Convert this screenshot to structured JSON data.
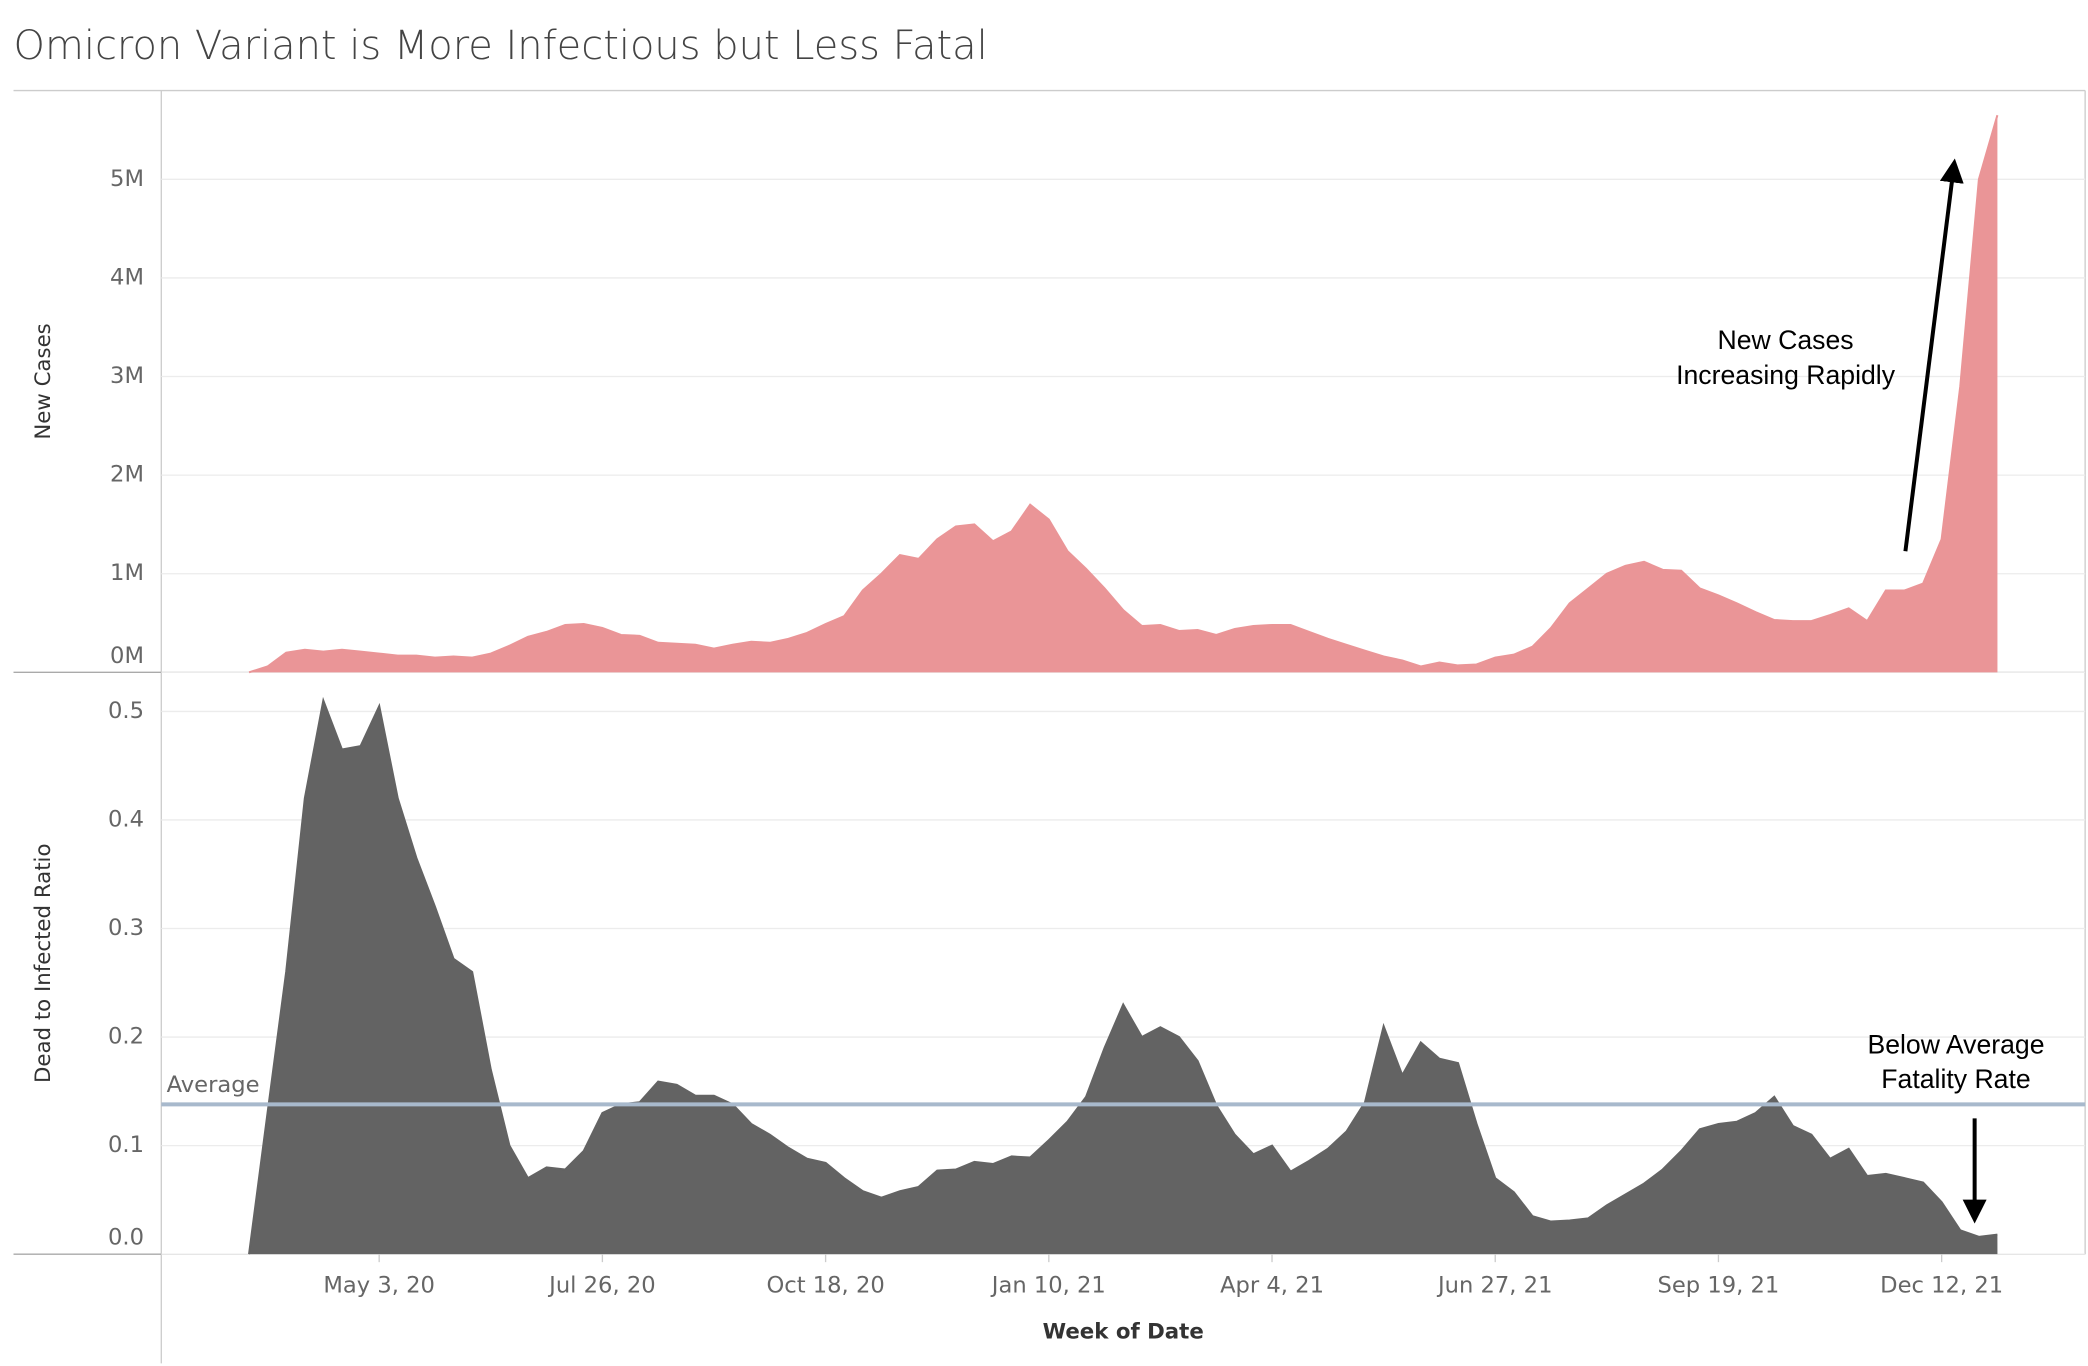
{
  "title": "Omicron Variant is More Infectious but Less Fatal",
  "chart_data": [
    {
      "type": "area",
      "y_label": "New Cases",
      "grid": true,
      "xlim": [
        "2020-02-11",
        "2022-02-04"
      ],
      "ylim": [
        0,
        5900000
      ],
      "yticks": [
        {
          "value": 0,
          "label": "0M"
        },
        {
          "value": 1000000,
          "label": "1M"
        },
        {
          "value": 2000000,
          "label": "2M"
        },
        {
          "value": 3000000,
          "label": "3M"
        },
        {
          "value": 4000000,
          "label": "4M"
        },
        {
          "value": 5000000,
          "label": "5M"
        }
      ],
      "annotation": [
        "New Cases",
        "Increasing Rapidly"
      ],
      "x": [
        "2020-03-15",
        "2020-03-22",
        "2020-03-29",
        "2020-04-05",
        "2020-04-12",
        "2020-04-19",
        "2020-04-26",
        "2020-05-03",
        "2020-05-10",
        "2020-05-17",
        "2020-05-24",
        "2020-05-31",
        "2020-06-07",
        "2020-06-14",
        "2020-06-21",
        "2020-06-28",
        "2020-07-05",
        "2020-07-12",
        "2020-07-19",
        "2020-07-26",
        "2020-08-02",
        "2020-08-09",
        "2020-08-16",
        "2020-08-23",
        "2020-08-30",
        "2020-09-06",
        "2020-09-13",
        "2020-09-20",
        "2020-09-27",
        "2020-10-04",
        "2020-10-11",
        "2020-10-18",
        "2020-10-25",
        "2020-11-01",
        "2020-11-08",
        "2020-11-15",
        "2020-11-22",
        "2020-11-29",
        "2020-12-06",
        "2020-12-13",
        "2020-12-20",
        "2020-12-27",
        "2021-01-03",
        "2021-01-10",
        "2021-01-17",
        "2021-01-24",
        "2021-01-31",
        "2021-02-07",
        "2021-02-14",
        "2021-02-21",
        "2021-02-28",
        "2021-03-07",
        "2021-03-14",
        "2021-03-21",
        "2021-03-28",
        "2021-04-04",
        "2021-04-11",
        "2021-04-18",
        "2021-04-25",
        "2021-05-02",
        "2021-05-09",
        "2021-05-16",
        "2021-05-23",
        "2021-05-30",
        "2021-06-06",
        "2021-06-13",
        "2021-06-20",
        "2021-06-27",
        "2021-07-04",
        "2021-07-11",
        "2021-07-18",
        "2021-07-25",
        "2021-08-01",
        "2021-08-08",
        "2021-08-15",
        "2021-08-22",
        "2021-08-29",
        "2021-09-05",
        "2021-09-12",
        "2021-09-19",
        "2021-09-26",
        "2021-10-03",
        "2021-10-10",
        "2021-10-17",
        "2021-10-24",
        "2021-10-31",
        "2021-11-07",
        "2021-11-14",
        "2021-11-21",
        "2021-11-28",
        "2021-12-05",
        "2021-12-12",
        "2021-12-19",
        "2021-12-26",
        "2022-01-02"
      ],
      "series": [
        {
          "name": "New Cases",
          "color": "#ea9597",
          "values": [
            0,
            60000,
            200000,
            230000,
            210000,
            230000,
            210000,
            190000,
            170000,
            170000,
            150000,
            160000,
            150000,
            190000,
            270000,
            360000,
            410000,
            480000,
            490000,
            450000,
            380000,
            370000,
            300000,
            290000,
            280000,
            240000,
            280000,
            310000,
            300000,
            340000,
            400000,
            490000,
            570000,
            830000,
            1000000,
            1190000,
            1150000,
            1350000,
            1480000,
            1500000,
            1330000,
            1430000,
            1700000,
            1550000,
            1230000,
            1050000,
            850000,
            630000,
            470000,
            480000,
            420000,
            430000,
            380000,
            440000,
            470000,
            480000,
            480000,
            410000,
            340000,
            280000,
            220000,
            160000,
            120000,
            60000,
            100000,
            70000,
            80000,
            150000,
            180000,
            260000,
            450000,
            700000,
            850000,
            1000000,
            1080000,
            1120000,
            1040000,
            1030000,
            850000,
            780000,
            700000,
            610000,
            530000,
            520000,
            520000,
            580000,
            650000,
            520000,
            830000,
            830000,
            900000,
            1350000,
            2900000,
            5000000,
            5650000
          ]
        }
      ]
    },
    {
      "type": "area",
      "y_label": "Dead to Infected Ratio",
      "x_label": "Week of Date",
      "grid": true,
      "xlim": [
        "2020-02-11",
        "2022-02-04"
      ],
      "ylim": [
        0,
        0.536
      ],
      "yticks": [
        {
          "value": 0,
          "label": "0.0"
        },
        0.1,
        0.2,
        0.3,
        0.4,
        0.5
      ],
      "xticks": [
        {
          "value": "2020-05-03",
          "label": "May 3, 20"
        },
        {
          "value": "2020-07-26",
          "label": "Jul 26, 20"
        },
        {
          "value": "2020-10-18",
          "label": "Oct 18, 20"
        },
        {
          "value": "2021-01-10",
          "label": "Jan 10, 21"
        },
        {
          "value": "2021-04-04",
          "label": "Apr 4, 21"
        },
        {
          "value": "2021-06-27",
          "label": "Jun 27, 21"
        },
        {
          "value": "2021-09-19",
          "label": "Sep 19, 21"
        },
        {
          "value": "2021-12-12",
          "label": "Dec 12, 21"
        }
      ],
      "reference_line": {
        "value": 0.138,
        "label": "Average",
        "color": "#a8b9cc"
      },
      "annotation": [
        "Below Average",
        "Fatality Rate"
      ],
      "x": [
        "2020-03-15",
        "2020-03-22",
        "2020-03-29",
        "2020-04-05",
        "2020-04-12",
        "2020-04-19",
        "2020-04-26",
        "2020-05-03",
        "2020-05-10",
        "2020-05-17",
        "2020-05-24",
        "2020-05-31",
        "2020-06-07",
        "2020-06-14",
        "2020-06-21",
        "2020-06-28",
        "2020-07-05",
        "2020-07-12",
        "2020-07-19",
        "2020-07-26",
        "2020-08-02",
        "2020-08-09",
        "2020-08-16",
        "2020-08-23",
        "2020-08-30",
        "2020-09-06",
        "2020-09-13",
        "2020-09-20",
        "2020-09-27",
        "2020-10-04",
        "2020-10-11",
        "2020-10-18",
        "2020-10-25",
        "2020-11-01",
        "2020-11-08",
        "2020-11-15",
        "2020-11-22",
        "2020-11-29",
        "2020-12-06",
        "2020-12-13",
        "2020-12-20",
        "2020-12-27",
        "2021-01-03",
        "2021-01-10",
        "2021-01-17",
        "2021-01-24",
        "2021-01-31",
        "2021-02-07",
        "2021-02-14",
        "2021-02-21",
        "2021-02-28",
        "2021-03-07",
        "2021-03-14",
        "2021-03-21",
        "2021-03-28",
        "2021-04-04",
        "2021-04-11",
        "2021-04-18",
        "2021-04-25",
        "2021-05-02",
        "2021-05-09",
        "2021-05-16",
        "2021-05-23",
        "2021-05-30",
        "2021-06-06",
        "2021-06-13",
        "2021-06-20",
        "2021-06-27",
        "2021-07-04",
        "2021-07-11",
        "2021-07-18",
        "2021-07-25",
        "2021-08-01",
        "2021-08-08",
        "2021-08-15",
        "2021-08-22",
        "2021-08-29",
        "2021-09-05",
        "2021-09-12",
        "2021-09-19",
        "2021-09-26",
        "2021-10-03",
        "2021-10-10",
        "2021-10-17",
        "2021-10-24",
        "2021-10-31",
        "2021-11-07",
        "2021-11-14",
        "2021-11-21",
        "2021-11-28",
        "2021-12-05",
        "2021-12-12",
        "2021-12-19",
        "2021-12-26",
        "2022-01-02"
      ],
      "series": [
        {
          "name": "Dead to Infected Ratio",
          "color": "#636363",
          "values": [
            0,
            0.13,
            0.26,
            0.42,
            0.51,
            0.465,
            0.468,
            0.505,
            0.42,
            0.365,
            0.32,
            0.272,
            0.26,
            0.17,
            0.1,
            0.07,
            0.08,
            0.078,
            0.095,
            0.13,
            0.138,
            0.14,
            0.159,
            0.156,
            0.146,
            0.146,
            0.138,
            0.12,
            0.11,
            0.098,
            0.088,
            0.084,
            0.07,
            0.058,
            0.052,
            0.058,
            0.062,
            0.077,
            0.078,
            0.085,
            0.083,
            0.09,
            0.089,
            0.105,
            0.122,
            0.145,
            0.19,
            0.23,
            0.2,
            0.209,
            0.2,
            0.178,
            0.137,
            0.11,
            0.092,
            0.1,
            0.076,
            0.086,
            0.097,
            0.113,
            0.14,
            0.21,
            0.165,
            0.195,
            0.18,
            0.176,
            0.12,
            0.07,
            0.057,
            0.035,
            0.03,
            0.031,
            0.033,
            0.045,
            0.055,
            0.065,
            0.078,
            0.095,
            0.115,
            0.12,
            0.122,
            0.13,
            0.145,
            0.118,
            0.11,
            0.088,
            0.097,
            0.072,
            0.074,
            0.07,
            0.066,
            0.048,
            0.022,
            0.016,
            0.018
          ]
        }
      ]
    }
  ]
}
